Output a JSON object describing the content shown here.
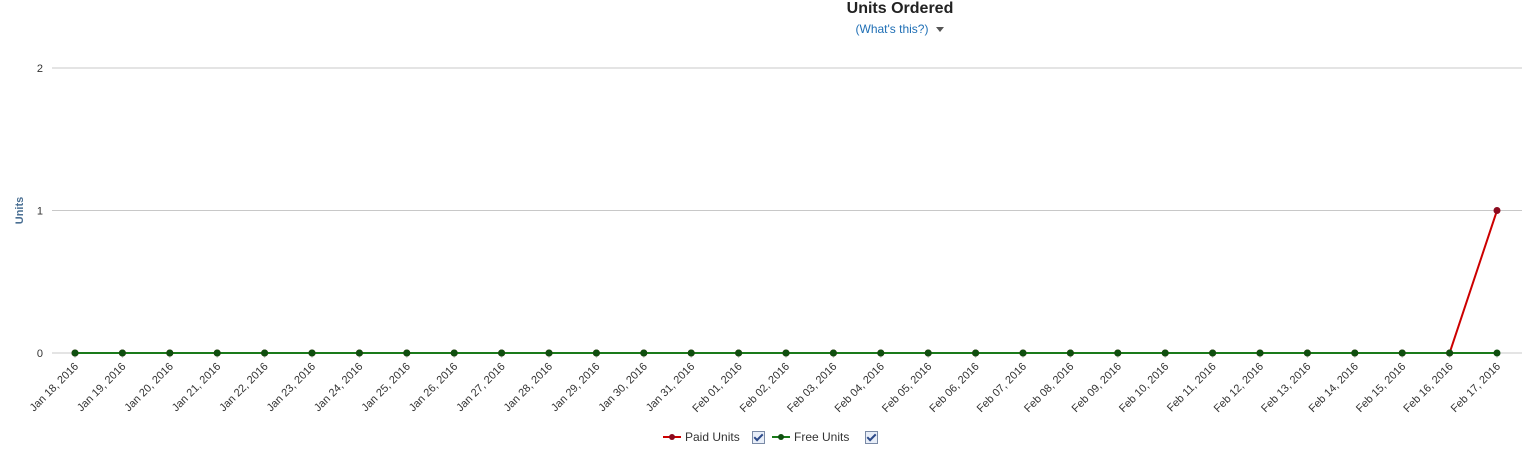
{
  "chart_data": {
    "type": "line",
    "title": "Units Ordered",
    "subtitle_link": "(What's this?)",
    "ylabel": "Units",
    "xlabel": "",
    "ylim": [
      0,
      2
    ],
    "yticks": [
      "0",
      "1",
      "2"
    ],
    "grid": true,
    "legend_position": "bottom",
    "categories": [
      "Jan 18, 2016",
      "Jan 19, 2016",
      "Jan 20, 2016",
      "Jan 21, 2016",
      "Jan 22, 2016",
      "Jan 23, 2016",
      "Jan 24, 2016",
      "Jan 25, 2016",
      "Jan 26, 2016",
      "Jan 27, 2016",
      "Jan 28, 2016",
      "Jan 29, 2016",
      "Jan 30, 2016",
      "Jan 31, 2016",
      "Feb 01, 2016",
      "Feb 02, 2016",
      "Feb 03, 2016",
      "Feb 04, 2016",
      "Feb 05, 2016",
      "Feb 06, 2016",
      "Feb 07, 2016",
      "Feb 08, 2016",
      "Feb 09, 2016",
      "Feb 10, 2016",
      "Feb 11, 2016",
      "Feb 12, 2016",
      "Feb 13, 2016",
      "Feb 14, 2016",
      "Feb 15, 2016",
      "Feb 16, 2016",
      "Feb 17, 2016"
    ],
    "series": [
      {
        "name": "Paid Units",
        "color": "#cc0000",
        "marker_color": "#8b0a1e",
        "checked": true,
        "values": [
          0,
          0,
          0,
          0,
          0,
          0,
          0,
          0,
          0,
          0,
          0,
          0,
          0,
          0,
          0,
          0,
          0,
          0,
          0,
          0,
          0,
          0,
          0,
          0,
          0,
          0,
          0,
          0,
          0,
          0,
          1
        ]
      },
      {
        "name": "Free Units",
        "color": "#1a7a1a",
        "marker_color": "#0f4f0f",
        "checked": true,
        "values": [
          0,
          0,
          0,
          0,
          0,
          0,
          0,
          0,
          0,
          0,
          0,
          0,
          0,
          0,
          0,
          0,
          0,
          0,
          0,
          0,
          0,
          0,
          0,
          0,
          0,
          0,
          0,
          0,
          0,
          0,
          0
        ]
      }
    ]
  }
}
